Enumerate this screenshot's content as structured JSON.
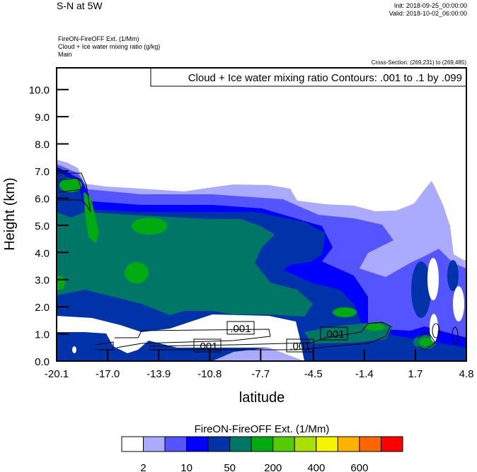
{
  "header": {
    "title": "S-N at 5W",
    "init": "Init: 2018-09-25_00:00:00",
    "valid": "Valid: 2018-10-02_06:00:00",
    "field_lines": [
      "FireON-FireOFF Ext.   (1/Mm)",
      "Cloud + Ice water mixing ratio   (g/kg)",
      "Main"
    ],
    "cross_section": "Cross-Section: (269,231) to (269,485)"
  },
  "chart_data": {
    "type": "heatmap",
    "description_fill": "filled contour of FireON-FireOFF Ext. (1/Mm)",
    "overlay_title": "Cloud + Ice water mixing ratio Contours: .001 to .1 by .099",
    "xlabel": "latitude",
    "ylabel": "Height (km)",
    "xlim": [
      -20.1,
      4.8
    ],
    "ylim": [
      0,
      10.8
    ],
    "xticks": [
      "-20.1",
      "-17.0",
      "-13.9",
      "-10.8",
      "-7.7",
      "-4.5",
      "-1.4",
      "1.7",
      "4.8"
    ],
    "xtick_values": [
      -20.1,
      -17.0,
      -13.9,
      -10.8,
      -7.7,
      -4.5,
      -1.4,
      1.7,
      4.8
    ],
    "yticks": [
      "0.0",
      "1.0",
      "2.0",
      "3.0",
      "4.0",
      "5.0",
      "6.0",
      "7.0",
      "8.0",
      "9.0",
      "10.0"
    ],
    "ytick_values": [
      0,
      1,
      2,
      3,
      4,
      5,
      6,
      7,
      8,
      9,
      10
    ],
    "contour_labels": [
      ".001",
      ".001",
      ".001",
      ".001"
    ],
    "colorbar": {
      "title": "FireON-FireOFF Ext.  (1/Mm)",
      "colors": [
        "#ffffff",
        "#aaaaff",
        "#5555ff",
        "#0000ff",
        "#0033aa",
        "#007766",
        "#00aa11",
        "#55cc00",
        "#aae000",
        "#f5f500",
        "#ffb300",
        "#ff6600",
        "#ff0000"
      ],
      "labels": [
        "2",
        "10",
        "50",
        "200",
        "400",
        "600"
      ]
    }
  }
}
